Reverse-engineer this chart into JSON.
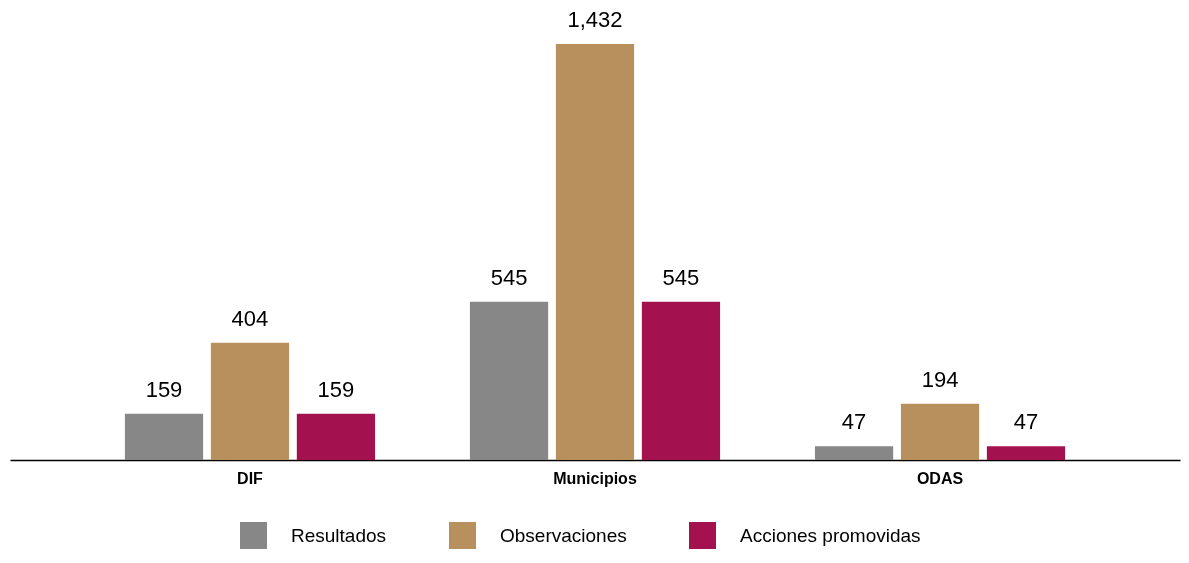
{
  "chart_data": {
    "type": "bar",
    "categories": [
      "DIF",
      "Municipios",
      "ODAS"
    ],
    "series": [
      {
        "name": "Resultados",
        "color": "#878787",
        "values": [
          159,
          545,
          47
        ],
        "value_labels": [
          "159",
          "545",
          "47"
        ]
      },
      {
        "name": "Observaciones",
        "color": "#b8905e",
        "values": [
          404,
          1432,
          194
        ],
        "value_labels": [
          "404",
          "1,432",
          "194"
        ]
      },
      {
        "name": "Acciones promovidas",
        "color": "#a3124f",
        "values": [
          159,
          545,
          47
        ],
        "value_labels": [
          "159",
          "545",
          "47"
        ]
      }
    ],
    "legend": "bottom",
    "grid": false
  }
}
